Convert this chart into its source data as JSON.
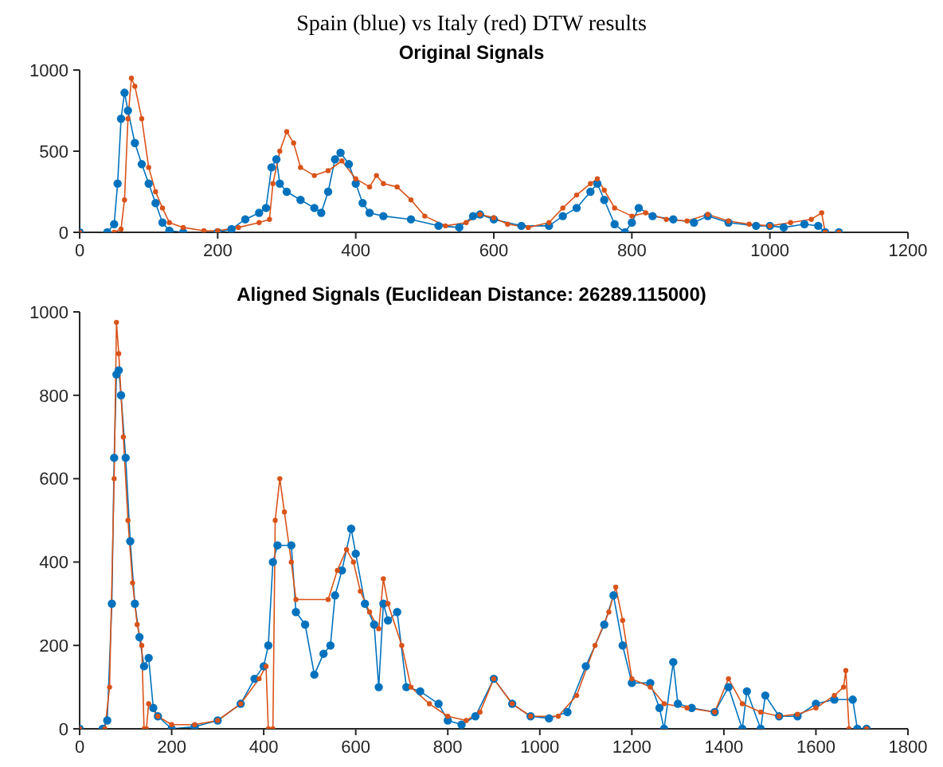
{
  "chart_data": [
    {
      "type": "line",
      "title": "Original Signals",
      "annotations": [
        "Spain (blue) vs Italy (red) DTW results"
      ],
      "xlim": [
        0,
        1200
      ],
      "xticks": [
        0,
        200,
        400,
        600,
        800,
        1000,
        1200
      ],
      "ylim": [
        0,
        1000
      ],
      "yticks": [
        0,
        500,
        1000
      ],
      "grid": false,
      "legend": false,
      "marker": "circle",
      "line_style": "solid",
      "series": [
        {
          "color": "#0072bd",
          "x": [
            0,
            40,
            50,
            55,
            60,
            65,
            70,
            80,
            90,
            100,
            110,
            120,
            130,
            150,
            200,
            220,
            240,
            260,
            270,
            278,
            285,
            290,
            300,
            320,
            340,
            350,
            360,
            370,
            378,
            390,
            400,
            410,
            420,
            440,
            480,
            520,
            550,
            570,
            580,
            600,
            640,
            680,
            700,
            720,
            740,
            750,
            760,
            775,
            790,
            800,
            810,
            830,
            860,
            890,
            910,
            940,
            980,
            1000,
            1020,
            1050,
            1070,
            1080,
            1100
          ],
          "values": [
            0,
            0,
            50,
            300,
            700,
            860,
            750,
            550,
            420,
            300,
            180,
            60,
            10,
            0,
            0,
            20,
            80,
            120,
            150,
            400,
            450,
            300,
            250,
            200,
            150,
            120,
            250,
            450,
            490,
            420,
            300,
            180,
            120,
            100,
            80,
            40,
            30,
            100,
            110,
            80,
            40,
            40,
            100,
            150,
            250,
            300,
            200,
            50,
            0,
            60,
            150,
            100,
            80,
            60,
            100,
            60,
            40,
            40,
            30,
            50,
            40,
            0,
            0
          ]
        },
        {
          "color": "#d95319",
          "x": [
            0,
            50,
            60,
            65,
            70,
            75,
            80,
            90,
            100,
            110,
            120,
            130,
            150,
            180,
            200,
            230,
            260,
            275,
            280,
            290,
            300,
            310,
            320,
            340,
            360,
            380,
            400,
            420,
            430,
            440,
            460,
            480,
            500,
            530,
            560,
            580,
            600,
            620,
            650,
            680,
            700,
            720,
            740,
            750,
            760,
            775,
            800,
            820,
            850,
            880,
            910,
            940,
            970,
            1000,
            1030,
            1060,
            1075,
            1080,
            1100
          ],
          "values": [
            0,
            0,
            20,
            200,
            700,
            950,
            900,
            700,
            400,
            250,
            150,
            60,
            30,
            10,
            10,
            30,
            60,
            80,
            300,
            500,
            620,
            550,
            400,
            350,
            380,
            440,
            330,
            280,
            350,
            300,
            280,
            200,
            100,
            40,
            60,
            110,
            90,
            50,
            30,
            60,
            150,
            230,
            300,
            330,
            260,
            150,
            100,
            120,
            80,
            70,
            110,
            70,
            50,
            40,
            60,
            80,
            120,
            0,
            0
          ]
        }
      ]
    },
    {
      "type": "line",
      "title": "Aligned Signals (Euclidean Distance: 26289.115000)",
      "xlim": [
        0,
        1800
      ],
      "xticks": [
        0,
        200,
        400,
        600,
        800,
        1000,
        1200,
        1400,
        1600,
        1800
      ],
      "ylim": [
        0,
        1000
      ],
      "yticks": [
        0,
        200,
        400,
        600,
        800,
        1000
      ],
      "grid": false,
      "legend": false,
      "marker": "circle",
      "line_style": "solid",
      "series": [
        {
          "color": "#0072bd",
          "x": [
            0,
            50,
            60,
            70,
            75,
            80,
            85,
            90,
            100,
            110,
            120,
            130,
            140,
            150,
            160,
            170,
            200,
            250,
            300,
            350,
            380,
            400,
            410,
            420,
            430,
            460,
            470,
            490,
            510,
            530,
            545,
            555,
            570,
            590,
            600,
            620,
            640,
            650,
            660,
            670,
            690,
            710,
            740,
            780,
            800,
            830,
            860,
            900,
            940,
            980,
            1020,
            1060,
            1100,
            1140,
            1160,
            1180,
            1200,
            1240,
            1260,
            1270,
            1290,
            1300,
            1330,
            1380,
            1410,
            1440,
            1450,
            1480,
            1490,
            1520,
            1560,
            1600,
            1640,
            1680,
            1690,
            1710
          ],
          "values": [
            0,
            0,
            20,
            300,
            650,
            850,
            860,
            800,
            650,
            450,
            300,
            220,
            150,
            170,
            50,
            30,
            0,
            5,
            20,
            60,
            120,
            150,
            200,
            400,
            440,
            440,
            280,
            250,
            130,
            180,
            200,
            320,
            380,
            480,
            420,
            300,
            250,
            100,
            300,
            260,
            280,
            100,
            90,
            60,
            20,
            10,
            30,
            120,
            60,
            30,
            25,
            40,
            150,
            250,
            320,
            200,
            110,
            110,
            50,
            0,
            160,
            60,
            50,
            40,
            100,
            0,
            90,
            0,
            80,
            30,
            30,
            60,
            70,
            70,
            0,
            0
          ]
        },
        {
          "color": "#d95319",
          "x": [
            0,
            55,
            65,
            75,
            80,
            85,
            95,
            105,
            115,
            125,
            135,
            140,
            145,
            150,
            170,
            200,
            250,
            300,
            350,
            390,
            405,
            410,
            420,
            425,
            435,
            445,
            460,
            470,
            540,
            560,
            580,
            595,
            610,
            630,
            650,
            660,
            670,
            700,
            720,
            760,
            800,
            840,
            870,
            900,
            940,
            980,
            1040,
            1080,
            1120,
            1150,
            1165,
            1180,
            1200,
            1240,
            1270,
            1320,
            1380,
            1410,
            1440,
            1480,
            1520,
            1560,
            1600,
            1640,
            1660,
            1665,
            1672,
            1710
          ],
          "values": [
            0,
            0,
            100,
            600,
            975,
            900,
            700,
            500,
            350,
            250,
            200,
            0,
            0,
            60,
            30,
            10,
            10,
            20,
            60,
            120,
            150,
            0,
            0,
            500,
            600,
            520,
            400,
            310,
            310,
            380,
            430,
            400,
            330,
            280,
            240,
            360,
            300,
            200,
            100,
            60,
            30,
            20,
            40,
            120,
            60,
            30,
            30,
            80,
            200,
            280,
            340,
            260,
            120,
            100,
            60,
            50,
            40,
            120,
            60,
            40,
            30,
            35,
            50,
            80,
            100,
            140,
            0,
            0
          ]
        }
      ]
    }
  ]
}
